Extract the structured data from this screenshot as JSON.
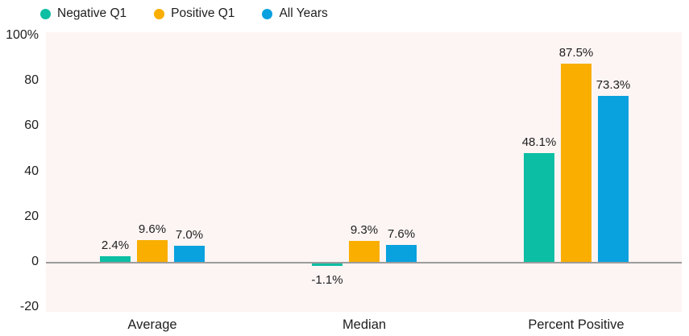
{
  "legend": {
    "items": [
      {
        "label": "Negative Q1",
        "color": "#0CBEA3"
      },
      {
        "label": "Positive Q1",
        "color": "#F9AE00"
      },
      {
        "label": "All Years",
        "color": "#0AA1DF"
      }
    ]
  },
  "colors": {
    "plot_background": "#FCF5F4",
    "zero_line": "#9C9C9C",
    "text": "#1E1E1E"
  },
  "chart_data": {
    "type": "bar",
    "title": "",
    "xlabel": "",
    "ylabel": "",
    "categories": [
      "Average",
      "Median",
      "Percent Positive"
    ],
    "series": [
      {
        "name": "Negative Q1",
        "color": "#0CBEA3",
        "values": [
          2.4,
          -1.1,
          48.1
        ],
        "labels": [
          "2.4%",
          "-1.1%",
          "48.1%"
        ]
      },
      {
        "name": "Positive Q1",
        "color": "#F9AE00",
        "values": [
          9.6,
          9.3,
          87.5
        ],
        "labels": [
          "9.6%",
          "9.3%",
          "87.5%"
        ]
      },
      {
        "name": "All Years",
        "color": "#0AA1DF",
        "values": [
          7.0,
          7.6,
          73.3
        ],
        "labels": [
          "7.0%",
          "7.6%",
          "73.3%"
        ]
      }
    ],
    "y_axis": {
      "min": -20,
      "max": 100,
      "ticks": [
        100,
        80,
        60,
        40,
        20,
        0,
        -20
      ],
      "tick_labels": [
        "100%",
        "80",
        "60",
        "40",
        "20",
        "0",
        "-20"
      ]
    },
    "legend_position": "top",
    "grid": false,
    "value_labels_shown": true
  }
}
